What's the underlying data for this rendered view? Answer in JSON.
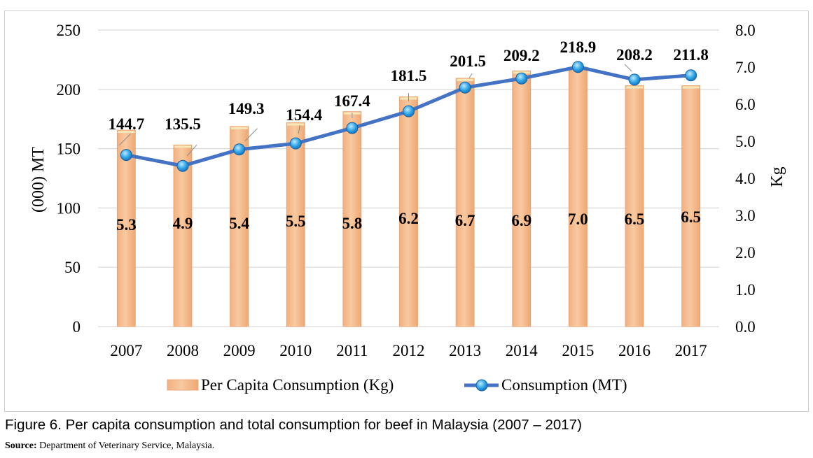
{
  "chart_data": {
    "type": "bar-line-combo",
    "categories": [
      "2007",
      "2008",
      "2009",
      "2010",
      "2011",
      "2012",
      "2013",
      "2014",
      "2015",
      "2016",
      "2017"
    ],
    "series": [
      {
        "name": "Per Capita Consumption (Kg)",
        "type": "bar",
        "axis": "right",
        "values": [
          5.3,
          4.9,
          5.4,
          5.5,
          5.8,
          6.2,
          6.7,
          6.9,
          7.0,
          6.5,
          6.5
        ],
        "labels": [
          "5.3",
          "4.9",
          "5.4",
          "5.5",
          "5.8",
          "6.2",
          "6.7",
          "6.9",
          "7.0",
          "6.5",
          "6.5"
        ],
        "color": "#f5b98a"
      },
      {
        "name": "Consumption (MT)",
        "type": "line",
        "axis": "left",
        "values": [
          144.7,
          135.5,
          149.3,
          154.4,
          167.4,
          181.5,
          201.5,
          209.2,
          218.9,
          208.2,
          211.8
        ],
        "labels": [
          "144.7",
          "135.5",
          "149.3",
          "154.4",
          "167.4",
          "181.5",
          "201.5",
          "209.2",
          "218.9",
          "208.2",
          "211.8"
        ],
        "color": "#4472c4"
      }
    ],
    "y_left": {
      "label": "(000) MT",
      "min": 0,
      "max": 250,
      "ticks": [
        "0",
        "50",
        "100",
        "150",
        "200",
        "250"
      ]
    },
    "y_right": {
      "label": "Kg",
      "min": 0,
      "max": 8,
      "ticks": [
        "0.0",
        "1.0",
        "2.0",
        "3.0",
        "4.0",
        "5.0",
        "6.0",
        "7.0",
        "8.0"
      ]
    },
    "grid": true,
    "legend_position": "bottom"
  },
  "caption": "Figure 6. Per capita consumption and total consumption for beef in Malaysia (2007 – 2017)",
  "source": {
    "label": "Source:",
    "text": " Department of Veterinary Service, Malaysia."
  },
  "colors": {
    "bar_fill": "#f5b98a",
    "bar_highlight": "#f8e8b8",
    "line": "#4472c4",
    "marker": "#29a3e0",
    "grid": "#d9d9d9"
  }
}
